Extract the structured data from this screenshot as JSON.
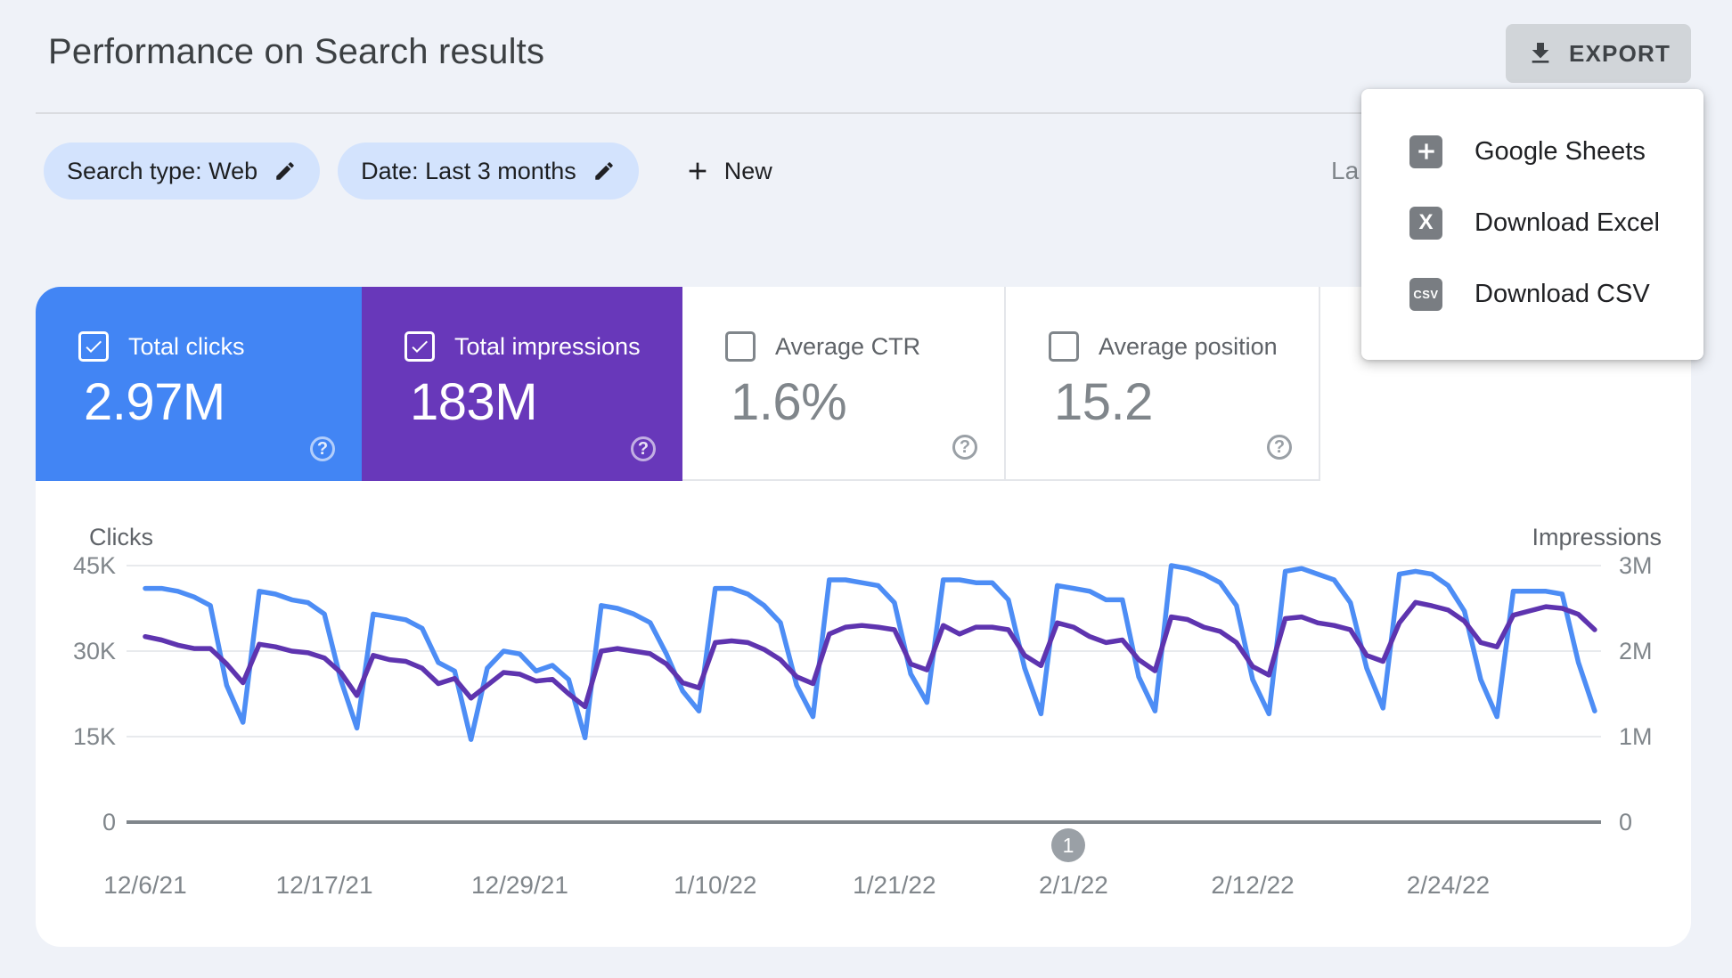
{
  "header": {
    "title": "Performance on Search results",
    "export_label": "EXPORT",
    "last_updated_partial": "La"
  },
  "filters": {
    "search_type_chip": "Search type: Web",
    "date_chip": "Date: Last 3 months",
    "new_label": "New"
  },
  "export_menu": {
    "items": [
      {
        "label": "Google Sheets",
        "icon": "google-sheets",
        "glyph": ""
      },
      {
        "label": "Download Excel",
        "icon": "excel",
        "glyph": "X"
      },
      {
        "label": "Download CSV",
        "icon": "csv",
        "glyph": "CSV"
      }
    ]
  },
  "icons": {
    "help_glyph": "?"
  },
  "cards": [
    {
      "label": "Total clicks",
      "value": "2.97M",
      "checked": true,
      "color": "#4285f4"
    },
    {
      "label": "Total impressions",
      "value": "183M",
      "checked": true,
      "color": "#6838ba"
    },
    {
      "label": "Average CTR",
      "value": "1.6%",
      "checked": false,
      "color": "#ffffff"
    },
    {
      "label": "Average position",
      "value": "15.2",
      "checked": false,
      "color": "#ffffff"
    }
  ],
  "pagination": {
    "current_page": "1"
  },
  "chart_data": {
    "type": "line",
    "x_start_date": "12/6/21",
    "x_frequency": "daily",
    "grid": true,
    "x_ticks": [
      {
        "label": "12/6/21",
        "day": 0
      },
      {
        "label": "12/17/21",
        "day": 11
      },
      {
        "label": "12/29/21",
        "day": 23
      },
      {
        "label": "1/10/22",
        "day": 35
      },
      {
        "label": "1/21/22",
        "day": 46
      },
      {
        "label": "2/1/22",
        "day": 57
      },
      {
        "label": "2/12/22",
        "day": 68
      },
      {
        "label": "2/24/22",
        "day": 80
      }
    ],
    "left_axis": {
      "title": "Clicks",
      "ticks": [
        "45K",
        "30K",
        "15K",
        "0"
      ],
      "tick_values": [
        45000,
        30000,
        15000,
        0
      ],
      "max": 45000
    },
    "right_axis": {
      "title": "Impressions",
      "ticks": [
        "3M",
        "2M",
        "1M",
        "0"
      ],
      "tick_values": [
        3000000,
        2000000,
        1000000,
        0
      ],
      "max": 3000000
    },
    "series": [
      {
        "name": "Clicks",
        "axis": "left",
        "color": "#4d8df5",
        "values": [
          41000,
          41000,
          40500,
          39500,
          38000,
          24000,
          17500,
          40500,
          40000,
          39000,
          38500,
          36500,
          25000,
          16500,
          36500,
          36000,
          35500,
          34000,
          28000,
          26500,
          14500,
          27000,
          30000,
          29500,
          26500,
          27500,
          25000,
          14800,
          38000,
          37500,
          36500,
          35000,
          29500,
          23000,
          19500,
          41000,
          41000,
          40000,
          38000,
          35000,
          24000,
          18500,
          42500,
          42500,
          42000,
          41500,
          38500,
          26000,
          21000,
          42500,
          42500,
          42000,
          42000,
          39000,
          27000,
          19000,
          41500,
          41000,
          40500,
          39000,
          39000,
          25500,
          19500,
          45000,
          44500,
          43500,
          42000,
          38000,
          25000,
          19000,
          44000,
          44500,
          43500,
          42500,
          38500,
          27000,
          20000,
          43500,
          44000,
          43500,
          41500,
          37000,
          25000,
          18500,
          40500,
          40500,
          40500,
          40000,
          28000,
          19500
        ]
      },
      {
        "name": "Impressions",
        "axis": "right",
        "color": "#5e34af",
        "values": [
          2170000,
          2130000,
          2070000,
          2030000,
          2030000,
          1850000,
          1630000,
          2080000,
          2050000,
          2000000,
          1980000,
          1920000,
          1750000,
          1480000,
          1950000,
          1900000,
          1880000,
          1800000,
          1620000,
          1680000,
          1450000,
          1600000,
          1750000,
          1730000,
          1650000,
          1670000,
          1500000,
          1350000,
          2000000,
          2030000,
          2000000,
          1970000,
          1850000,
          1630000,
          1570000,
          2100000,
          2120000,
          2100000,
          2020000,
          1900000,
          1700000,
          1620000,
          2200000,
          2280000,
          2300000,
          2280000,
          2250000,
          1850000,
          1780000,
          2300000,
          2200000,
          2280000,
          2280000,
          2250000,
          1950000,
          1830000,
          2330000,
          2280000,
          2170000,
          2100000,
          2130000,
          1900000,
          1770000,
          2400000,
          2370000,
          2280000,
          2230000,
          2100000,
          1820000,
          1720000,
          2380000,
          2400000,
          2330000,
          2300000,
          2250000,
          1950000,
          1880000,
          2330000,
          2570000,
          2530000,
          2480000,
          2350000,
          2100000,
          2050000,
          2420000,
          2470000,
          2520000,
          2500000,
          2430000,
          2250000
        ]
      }
    ]
  }
}
